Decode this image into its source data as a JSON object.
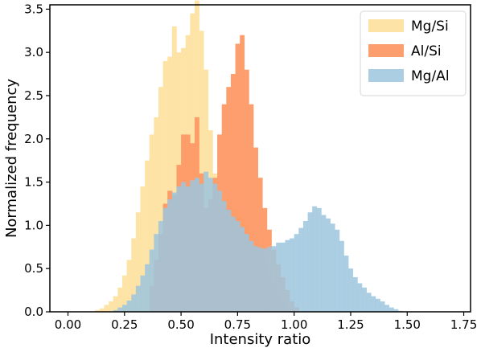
{
  "chart_data": {
    "type": "histogram",
    "xlabel": "Intensity ratio",
    "ylabel": "Normalized frequency",
    "xlim": [
      -0.08,
      1.78
    ],
    "ylim": [
      0,
      3.55
    ],
    "xticks": [
      "0.00",
      "0.25",
      "0.50",
      "0.75",
      "1.00",
      "1.25",
      "1.50",
      "1.75"
    ],
    "yticks": [
      "0.0",
      "0.5",
      "1.0",
      "1.5",
      "2.0",
      "2.5",
      "3.0",
      "3.5"
    ],
    "grid": false,
    "legend_position": "top-right",
    "bin_width": 0.02,
    "series": [
      {
        "name": "Mg/Si",
        "color": "#fde3a6",
        "opacity": 1,
        "x": [
          0.13,
          0.15,
          0.17,
          0.19,
          0.21,
          0.23,
          0.25,
          0.27,
          0.29,
          0.31,
          0.33,
          0.35,
          0.37,
          0.39,
          0.41,
          0.43,
          0.45,
          0.47,
          0.49,
          0.51,
          0.53,
          0.55,
          0.57,
          0.59,
          0.61,
          0.63,
          0.65,
          0.67,
          0.69,
          0.71,
          0.73,
          0.75,
          0.77,
          0.79,
          0.81,
          0.83,
          0.85,
          0.87,
          0.89,
          0.91,
          0.93,
          0.95,
          0.97,
          0.99
        ],
        "values": [
          0.02,
          0.04,
          0.08,
          0.12,
          0.18,
          0.28,
          0.42,
          0.6,
          0.85,
          1.15,
          1.45,
          1.75,
          2.05,
          2.25,
          2.6,
          2.9,
          2.95,
          3.3,
          3.0,
          3.05,
          3.2,
          3.45,
          3.6,
          3.25,
          2.8,
          2.1,
          1.6,
          1.35,
          1.28,
          1.3,
          1.2,
          1.18,
          1.1,
          1.02,
          0.93,
          0.85,
          0.72,
          0.6,
          0.45,
          0.32,
          0.18,
          0.08,
          0.03,
          0.01
        ]
      },
      {
        "name": "Al/Si",
        "color": "#fd9966",
        "opacity": 0.95,
        "x": [
          0.37,
          0.39,
          0.41,
          0.43,
          0.45,
          0.47,
          0.49,
          0.51,
          0.53,
          0.55,
          0.57,
          0.59,
          0.61,
          0.63,
          0.65,
          0.67,
          0.69,
          0.71,
          0.73,
          0.75,
          0.77,
          0.79,
          0.81,
          0.83,
          0.85,
          0.87,
          0.89,
          0.91,
          0.93,
          0.95,
          0.97,
          0.99,
          1.01
        ],
        "values": [
          0.3,
          0.6,
          0.9,
          1.25,
          1.4,
          1.35,
          1.7,
          2.05,
          2.05,
          1.95,
          2.25,
          1.6,
          1.2,
          1.3,
          1.55,
          2.05,
          2.4,
          2.6,
          2.75,
          3.1,
          3.2,
          2.8,
          2.4,
          1.9,
          1.55,
          1.2,
          0.95,
          0.72,
          0.55,
          0.4,
          0.25,
          0.12,
          0.05
        ]
      },
      {
        "name": "Mg/Al",
        "color": "#9ec5de",
        "opacity": 0.85,
        "x": [
          0.21,
          0.23,
          0.25,
          0.27,
          0.29,
          0.31,
          0.33,
          0.35,
          0.37,
          0.39,
          0.41,
          0.43,
          0.45,
          0.47,
          0.49,
          0.51,
          0.53,
          0.55,
          0.57,
          0.59,
          0.61,
          0.63,
          0.65,
          0.67,
          0.69,
          0.71,
          0.73,
          0.75,
          0.77,
          0.79,
          0.81,
          0.83,
          0.85,
          0.87,
          0.89,
          0.91,
          0.93,
          0.95,
          0.97,
          0.99,
          1.01,
          1.03,
          1.05,
          1.07,
          1.09,
          1.11,
          1.13,
          1.15,
          1.17,
          1.19,
          1.21,
          1.23,
          1.25,
          1.27,
          1.29,
          1.31,
          1.33,
          1.35,
          1.37,
          1.39,
          1.41,
          1.43,
          1.45,
          1.47
        ],
        "values": [
          0.02,
          0.05,
          0.08,
          0.13,
          0.2,
          0.3,
          0.42,
          0.55,
          0.72,
          0.9,
          1.05,
          1.2,
          1.3,
          1.38,
          1.45,
          1.5,
          1.45,
          1.52,
          1.55,
          1.48,
          1.62,
          1.55,
          1.48,
          1.4,
          1.28,
          1.18,
          1.1,
          1.05,
          0.98,
          0.9,
          0.82,
          0.76,
          0.74,
          0.73,
          0.75,
          0.76,
          0.8,
          0.8,
          0.83,
          0.85,
          0.9,
          0.97,
          1.05,
          1.15,
          1.22,
          1.2,
          1.12,
          1.08,
          1.02,
          0.95,
          0.82,
          0.65,
          0.5,
          0.4,
          0.33,
          0.28,
          0.22,
          0.18,
          0.15,
          0.12,
          0.08,
          0.05,
          0.03,
          0.01
        ]
      }
    ]
  }
}
